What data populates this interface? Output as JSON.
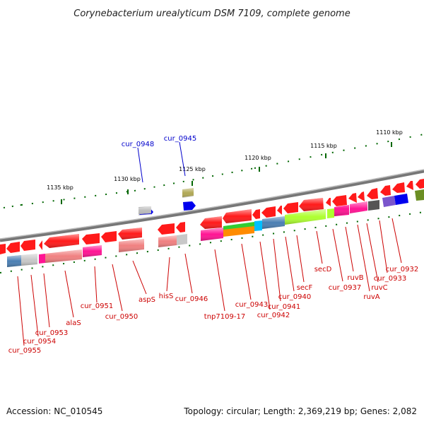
{
  "title": "Corynebacterium urealyticum DSM 7109, complete genome",
  "footer": {
    "accession": "Accession: NC_010545",
    "summary": "Topology: circular; Length: 2,369,219 bp; Genes: 2,082"
  },
  "scale_labels": [
    "1110 kbp",
    "1115 kbp",
    "1120 kbp",
    "1125 kbp",
    "1130 kbp",
    "1135 kbp"
  ],
  "labels": {
    "red": [
      "cur_0932",
      "cur_0933",
      "ruvC",
      "ruvA",
      "ruvB",
      "cur_0937",
      "secD",
      "secF",
      "cur_0940",
      "cur_0941",
      "cur_0942",
      "cur_0943",
      "tnp7109-17",
      "cur_0946",
      "hisS",
      "aspS",
      "cur_0950",
      "cur_0951",
      "alaS",
      "cur_0953",
      "cur_0954",
      "cur_0955"
    ],
    "blue": [
      "cur_0945",
      "cur_0948"
    ]
  },
  "colors": {
    "label_red": "#cc0000",
    "label_blue": "#0000cc",
    "gene_red": "#ff1a1a",
    "backbone": "#888888",
    "tick": "#006600"
  }
}
